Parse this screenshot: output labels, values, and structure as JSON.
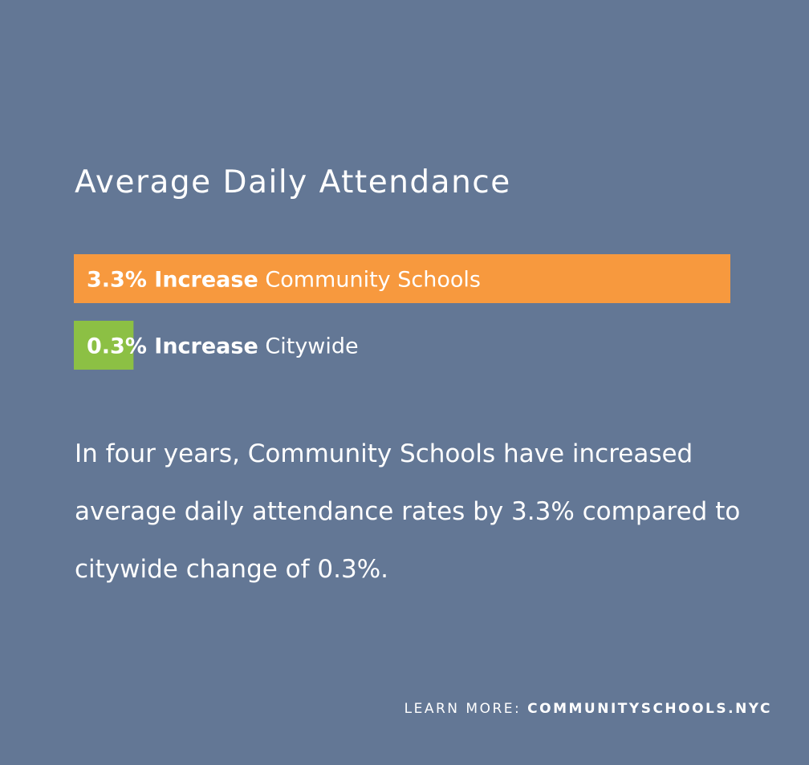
{
  "title": "Average Daily Attendance",
  "chart_data": {
    "type": "bar",
    "orientation": "horizontal",
    "categories": [
      "Community Schools",
      "Citywide"
    ],
    "values": [
      3.3,
      0.3
    ],
    "value_labels": [
      "3.3% Increase",
      "0.3% Increase"
    ],
    "unit": "%",
    "colors": [
      "#f7993e",
      "#8cc044"
    ],
    "xlim": [
      0,
      3.3
    ],
    "grid": false,
    "legend": "none"
  },
  "body_text": "In four years, Community Schools have increased average daily attendance rates by 3.3% compared to citywide change of 0.3%.",
  "footer": {
    "prefix": "LEARN MORE: ",
    "url": "COMMUNITYSCHOOLS.NYC"
  }
}
